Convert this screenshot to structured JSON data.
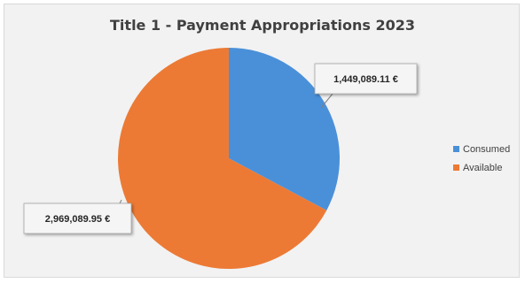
{
  "colors": {
    "consumed": "#4a90d9",
    "available": "#ec7a35",
    "callout_bg": "#f5f5f5",
    "callout_border": "#a6a6a6",
    "leader": "#7f7f7f"
  },
  "chart_data": {
    "type": "pie",
    "title": "Title 1 - Payment Appropriations 2023",
    "series": [
      {
        "name": "Consumed",
        "value": 1449089.11,
        "label": "1,449,089.11 €"
      },
      {
        "name": "Available",
        "value": 2969089.95,
        "label": "2,969,089.95 €"
      }
    ],
    "start_angle_deg": 0,
    "direction": "clockwise",
    "legend_placement": "right",
    "data_labels": "callout"
  }
}
